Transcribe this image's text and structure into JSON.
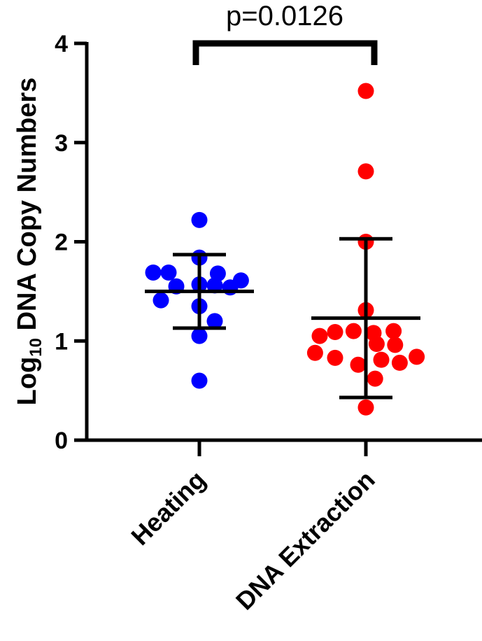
{
  "chart_data": {
    "type": "scatter",
    "title": "",
    "xlabel": "",
    "ylabel_main": "Log",
    "ylabel_sub": "10",
    "ylabel_rest": " DNA Copy Numbers",
    "ylim": [
      0,
      4
    ],
    "yticks": [
      "0",
      "1",
      "2",
      "3",
      "4"
    ],
    "categories": [
      "Heating",
      "DNA Extraction"
    ],
    "annotation": "p=0.0126",
    "series": [
      {
        "name": "Heating",
        "color": "#0000ff",
        "mean": 1.5,
        "sd_upper": 1.87,
        "sd_lower": 1.13,
        "points": [
          {
            "offset": 0,
            "y": 2.22
          },
          {
            "offset": 0,
            "y": 1.84
          },
          {
            "offset": -3,
            "y": 1.69
          },
          {
            "offset": -2,
            "y": 1.69
          },
          {
            "offset": 1.2,
            "y": 1.68
          },
          {
            "offset": 2.7,
            "y": 1.61
          },
          {
            "offset": -1.5,
            "y": 1.55
          },
          {
            "offset": 0,
            "y": 1.57
          },
          {
            "offset": 1,
            "y": 1.56
          },
          {
            "offset": 2,
            "y": 1.54
          },
          {
            "offset": -2.5,
            "y": 1.41
          },
          {
            "offset": 0,
            "y": 1.35
          },
          {
            "offset": 1,
            "y": 1.2
          },
          {
            "offset": 0,
            "y": 1.05
          },
          {
            "offset": 0,
            "y": 0.6
          }
        ]
      },
      {
        "name": "DNA Extraction",
        "color": "#ff0000",
        "mean": 1.23,
        "sd_upper": 2.03,
        "sd_lower": 0.43,
        "points": [
          {
            "offset": 0,
            "y": 3.52
          },
          {
            "offset": 0,
            "y": 2.71
          },
          {
            "offset": 0,
            "y": 2.0
          },
          {
            "offset": 0,
            "y": 1.31
          },
          {
            "offset": -3,
            "y": 1.05
          },
          {
            "offset": -2,
            "y": 1.09
          },
          {
            "offset": -0.8,
            "y": 1.1
          },
          {
            "offset": 0.5,
            "y": 1.08
          },
          {
            "offset": 1.8,
            "y": 1.1
          },
          {
            "offset": 0.7,
            "y": 0.97
          },
          {
            "offset": 1.9,
            "y": 0.96
          },
          {
            "offset": -3.3,
            "y": 0.88
          },
          {
            "offset": -2,
            "y": 0.83
          },
          {
            "offset": -0.5,
            "y": 0.76
          },
          {
            "offset": 1,
            "y": 0.81
          },
          {
            "offset": 2.2,
            "y": 0.78
          },
          {
            "offset": 3.3,
            "y": 0.84
          },
          {
            "offset": 0.6,
            "y": 0.62
          },
          {
            "offset": 0,
            "y": 0.33
          }
        ]
      }
    ]
  }
}
